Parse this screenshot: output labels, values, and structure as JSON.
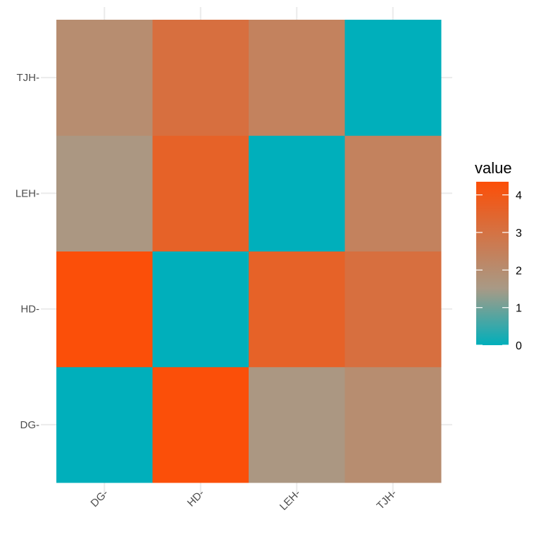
{
  "chart_data": {
    "type": "heatmap",
    "x_categories": [
      "DG-",
      "HD-",
      "LEH-",
      "TJH-"
    ],
    "y_categories": [
      "DG-",
      "HD-",
      "LEH-",
      "TJH-"
    ],
    "values": [
      [
        0,
        4.3,
        1.6,
        2.0
      ],
      [
        4.3,
        0,
        3.6,
        3.1
      ],
      [
        1.6,
        3.6,
        0,
        2.4
      ],
      [
        2.0,
        3.1,
        2.4,
        0
      ]
    ],
    "legend": {
      "title": "value",
      "ticks": [
        "0",
        "1",
        "2",
        "3",
        "4"
      ],
      "min": 0,
      "max": 4.35,
      "position": "right"
    },
    "colors": {
      "low": "#00AFBB",
      "mid": "#A89A86",
      "high": "#FC4E07",
      "midpoint": 1.5
    },
    "grid": true
  }
}
